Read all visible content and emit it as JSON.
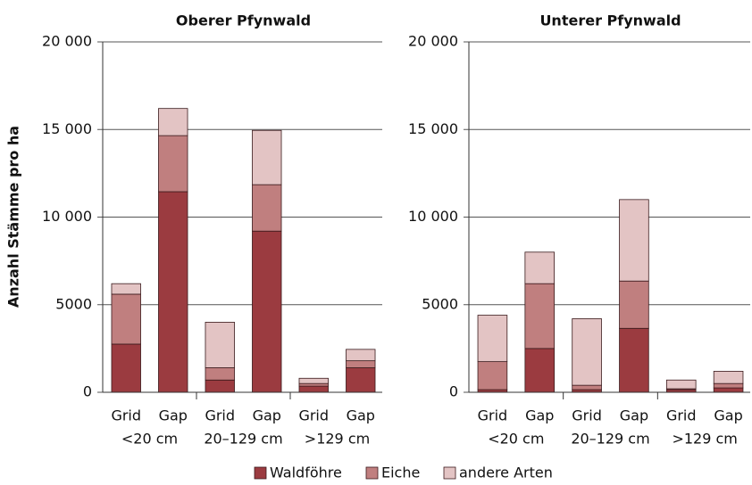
{
  "chart_data": [
    {
      "type": "bar",
      "stacked": true,
      "title": "Oberer Pfynwald",
      "ylabel": "Anzahl Stämme pro ha",
      "categories": [
        "Grid",
        "Gap",
        "Grid",
        "Gap",
        "Grid",
        "Gap"
      ],
      "groups": [
        "<20 cm",
        "20–129 cm",
        ">129 cm"
      ],
      "series": [
        {
          "name": "Waldföhre",
          "color": "#9b3b40",
          "values": [
            2750,
            11450,
            700,
            9200,
            350,
            1400
          ]
        },
        {
          "name": "Eiche",
          "color": "#c07f7f",
          "values": [
            2850,
            3200,
            700,
            2650,
            150,
            400
          ]
        },
        {
          "name": "andere Arten",
          "color": "#e3c4c4",
          "values": [
            600,
            1550,
            2600,
            3100,
            300,
            650
          ]
        }
      ],
      "ylim": [
        0,
        20000
      ],
      "yticks": [
        0,
        5000,
        {
          "value": 10000,
          "label": "10 000"
        },
        {
          "value": 15000,
          "label": "15 000"
        },
        {
          "value": 20000,
          "label": "20 000"
        }
      ],
      "grid": true
    },
    {
      "type": "bar",
      "stacked": true,
      "title": "Unterer Pfynwald",
      "categories": [
        "Grid",
        "Gap",
        "Grid",
        "Gap",
        "Grid",
        "Gap"
      ],
      "groups": [
        "<20 cm",
        "20–129 cm",
        ">129 cm"
      ],
      "series": [
        {
          "name": "Waldföhre",
          "color": "#9b3b40",
          "values": [
            150,
            2500,
            150,
            3650,
            150,
            250
          ]
        },
        {
          "name": "Eiche",
          "color": "#c07f7f",
          "values": [
            1600,
            3700,
            250,
            2700,
            50,
            250
          ]
        },
        {
          "name": "andere Arten",
          "color": "#e3c4c4",
          "values": [
            2650,
            1800,
            3800,
            4650,
            500,
            700
          ]
        }
      ],
      "ylim": [
        0,
        20000
      ],
      "yticks": [
        0,
        5000,
        {
          "value": 10000,
          "label": "10 000"
        },
        {
          "value": 15000,
          "label": "15 000"
        },
        {
          "value": 20000,
          "label": "20 000"
        }
      ],
      "grid": true
    }
  ]
}
